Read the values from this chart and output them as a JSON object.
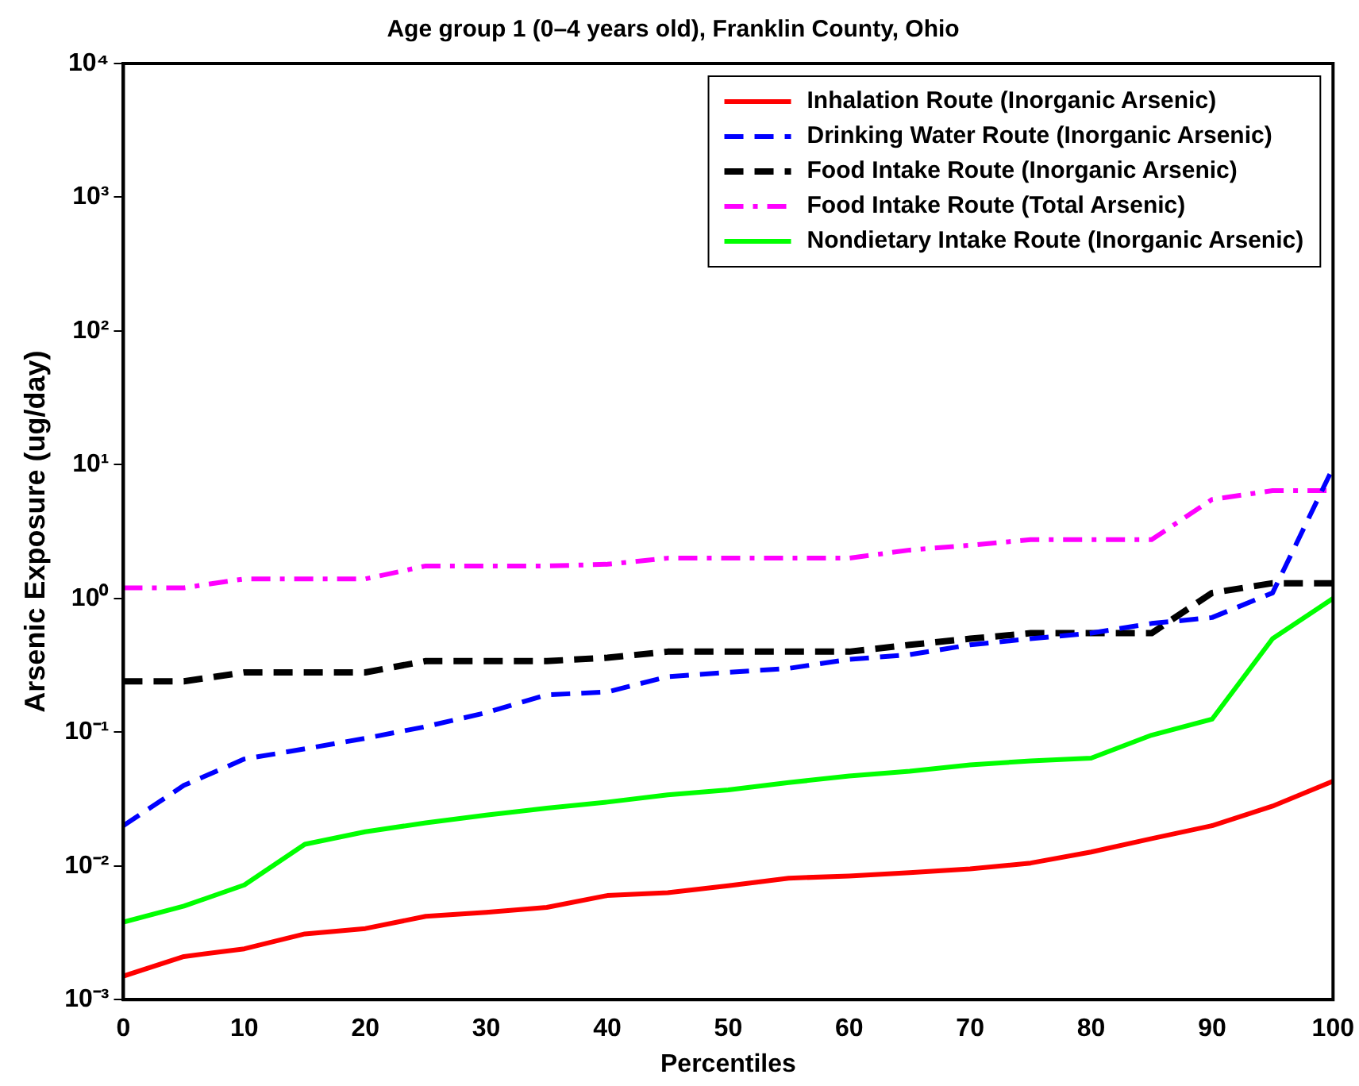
{
  "chart_data": {
    "type": "line",
    "title": "Age group 1 (0–4 years old), Franklin County, Ohio",
    "xlabel": "Percentiles",
    "ylabel": "Arsenic Exposure (ug/day)",
    "x": [
      0,
      5,
      10,
      15,
      20,
      25,
      30,
      35,
      40,
      45,
      50,
      55,
      60,
      65,
      70,
      75,
      80,
      85,
      90,
      95,
      100
    ],
    "xlim": [
      0,
      100
    ],
    "xticks": [
      0,
      10,
      20,
      30,
      40,
      50,
      60,
      70,
      80,
      90,
      100
    ],
    "ylim": [
      0.001,
      10000
    ],
    "yticks": [
      {
        "value": 0.001,
        "label": "10⁻³"
      },
      {
        "value": 0.01,
        "label": "10⁻²"
      },
      {
        "value": 0.1,
        "label": "10⁻¹"
      },
      {
        "value": 1,
        "label": "10⁰"
      },
      {
        "value": 10,
        "label": "10¹"
      },
      {
        "value": 100,
        "label": "10²"
      },
      {
        "value": 1000,
        "label": "10³"
      },
      {
        "value": 10000,
        "label": "10⁴"
      }
    ],
    "log": "y",
    "grid": false,
    "legend": "top right",
    "marker": "none",
    "series": [
      {
        "name": "Inhalation Route (Inorganic Arsenic)",
        "color": "#ff0000",
        "line_style": "solid",
        "values": [
          0.0015,
          0.0021,
          0.0024,
          0.0031,
          0.0034,
          0.0042,
          0.0045,
          0.0049,
          0.006,
          0.0063,
          0.0071,
          0.0081,
          0.0084,
          0.0089,
          0.0095,
          0.0105,
          0.0127,
          0.016,
          0.02,
          0.028,
          0.043
        ]
      },
      {
        "name": "Drinking Water Route (Inorganic Arsenic)",
        "color": "#0000ff",
        "line_style": "dashed",
        "values": [
          0.02,
          0.04,
          0.063,
          0.075,
          0.09,
          0.11,
          0.14,
          0.19,
          0.2,
          0.26,
          0.28,
          0.3,
          0.35,
          0.38,
          0.45,
          0.5,
          0.55,
          0.65,
          0.72,
          1.1,
          9.5
        ]
      },
      {
        "name": "Food Intake Route (Inorganic Arsenic)",
        "color": "#000000",
        "line_style": "dashed",
        "values": [
          0.24,
          0.24,
          0.28,
          0.28,
          0.28,
          0.34,
          0.34,
          0.34,
          0.36,
          0.4,
          0.4,
          0.4,
          0.4,
          0.45,
          0.5,
          0.55,
          0.55,
          0.55,
          1.1,
          1.3,
          1.3
        ]
      },
      {
        "name": "Food Intake Route (Total Arsenic)",
        "color": "#ff00ff",
        "line_style": "dashdot",
        "values": [
          1.2,
          1.2,
          1.4,
          1.4,
          1.4,
          1.75,
          1.75,
          1.75,
          1.8,
          2,
          2,
          2,
          2,
          2.3,
          2.5,
          2.75,
          2.75,
          2.75,
          5.5,
          6.4,
          6.4
        ]
      },
      {
        "name": "Nondietary Intake Route (Inorganic Arsenic)",
        "color": "#00ff00",
        "line_style": "solid",
        "values": [
          0.0038,
          0.005,
          0.0072,
          0.0145,
          0.018,
          0.021,
          0.024,
          0.027,
          0.03,
          0.034,
          0.037,
          0.042,
          0.047,
          0.051,
          0.057,
          0.061,
          0.064,
          0.095,
          0.125,
          0.5,
          1.0
        ]
      }
    ]
  }
}
